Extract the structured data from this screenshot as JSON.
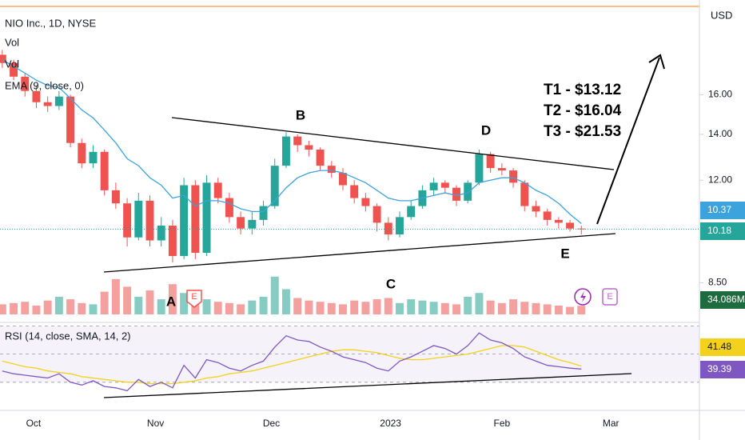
{
  "chart_data": {
    "type": "candlestick",
    "title": "NIO Inc., 1D, NYSE",
    "volume_label": "Vol",
    "volume_label_2": "Vol",
    "ema_label": "EMA (9, close, 0)",
    "rsi_label": "RSI (14, close, SMA, 14, 2)",
    "currency": "USD",
    "annotations": [
      "A",
      "B",
      "C",
      "D",
      "E"
    ],
    "targets": [
      "T1 - $13.12",
      "T2 - $16.04",
      "T3 - $21.53"
    ],
    "earnings_badge": "E",
    "log_scale": true,
    "up_color": "#26a69a",
    "down_color": "#ef5350",
    "volume_up_color": "#86ccc3",
    "volume_down_color": "#f3a09e",
    "ema_color": "#3ca3dc",
    "rsi_color": "#7e57c2",
    "rsi_sma_color": "#f2d21b",
    "xlim": [
      -0.2,
      61.4
    ],
    "xticks": [
      {
        "value": 2.75,
        "label": "Oct"
      },
      {
        "value": 13.5,
        "label": "Nov"
      },
      {
        "value": 23.7,
        "label": "Dec"
      },
      {
        "value": 34.2,
        "label": "2023"
      },
      {
        "value": 44,
        "label": "Feb"
      },
      {
        "value": 53.6,
        "label": "Mar"
      }
    ],
    "ylim": [
      7.6,
      22
    ],
    "yticks": [
      {
        "value": 8.5,
        "label": "8.50"
      },
      {
        "value": 12,
        "label": "12.00"
      },
      {
        "value": 14,
        "label": "14.00"
      },
      {
        "value": 16,
        "label": "16.00"
      }
    ],
    "open": [
      18.3,
      17.8,
      17.0,
      16.2,
      15.6,
      15.4,
      15.9,
      13.6,
      12.7,
      13.2,
      11.6,
      11.1,
      9.9,
      11.2,
      9.8,
      10.3,
      9.3,
      11.8,
      9.4,
      11.9,
      11.3,
      10.6,
      10.2,
      10.5,
      11.0,
      12.6,
      13.9,
      13.5,
      13.3,
      12.6,
      12.3,
      11.8,
      11.3,
      11.0,
      10.4,
      10.0,
      10.6,
      11.0,
      11.6,
      11.9,
      11.7,
      11.2,
      11.9,
      13.1,
      12.5,
      12.4,
      11.9,
      11.0,
      10.8,
      10.5,
      10.4,
      10.2
    ],
    "high": [
      18.6,
      18.0,
      17.2,
      16.5,
      15.9,
      16.2,
      16.0,
      13.8,
      13.5,
      13.3,
      11.9,
      11.3,
      11.5,
      11.4,
      10.6,
      10.5,
      12.1,
      12.0,
      12.2,
      12.1,
      11.5,
      10.8,
      10.8,
      11.2,
      12.9,
      14.1,
      14.0,
      13.7,
      13.4,
      12.8,
      12.5,
      12.0,
      11.5,
      11.1,
      10.6,
      10.8,
      11.2,
      11.8,
      12.1,
      12.0,
      11.8,
      12.0,
      13.3,
      13.2,
      12.7,
      12.5,
      12.0,
      11.2,
      10.9,
      10.6,
      10.5,
      10.3
    ],
    "low": [
      17.5,
      16.8,
      15.9,
      15.3,
      15.1,
      15.2,
      13.4,
      12.5,
      12.5,
      11.4,
      10.9,
      9.6,
      9.8,
      9.6,
      9.6,
      9.1,
      9.2,
      9.2,
      9.3,
      11.1,
      10.4,
      10.0,
      10.0,
      10.3,
      10.9,
      12.5,
      13.2,
      13.0,
      12.4,
      12.1,
      11.6,
      11.1,
      10.8,
      10.1,
      9.8,
      9.9,
      10.5,
      10.9,
      11.4,
      11.5,
      11.0,
      11.1,
      11.8,
      12.3,
      12.2,
      11.7,
      10.8,
      10.6,
      10.3,
      10.2,
      10.1,
      10.0
    ],
    "close": [
      17.8,
      17.0,
      16.2,
      15.6,
      15.4,
      15.9,
      13.6,
      12.7,
      13.2,
      11.6,
      11.1,
      9.9,
      11.2,
      9.8,
      10.3,
      9.3,
      11.8,
      9.4,
      11.9,
      11.3,
      10.6,
      10.2,
      10.5,
      11.0,
      12.6,
      13.9,
      13.5,
      13.3,
      12.6,
      12.3,
      11.8,
      11.3,
      11.0,
      10.4,
      10.0,
      10.6,
      11.0,
      11.6,
      11.9,
      11.7,
      11.2,
      11.9,
      13.1,
      12.5,
      12.4,
      11.9,
      11.0,
      10.8,
      10.5,
      10.4,
      10.2,
      10.18
    ],
    "ema": [
      18.0,
      17.6,
      17.2,
      16.8,
      16.5,
      16.4,
      15.8,
      15.2,
      14.8,
      14.2,
      13.6,
      12.9,
      12.6,
      12.1,
      11.8,
      11.3,
      11.4,
      11.0,
      11.2,
      11.2,
      11.1,
      10.9,
      10.8,
      10.8,
      11.2,
      11.7,
      12.1,
      12.3,
      12.4,
      12.4,
      12.3,
      12.1,
      11.9,
      11.6,
      11.3,
      11.2,
      11.2,
      11.3,
      11.4,
      11.5,
      11.4,
      11.5,
      11.9,
      12.0,
      12.1,
      12.1,
      11.9,
      11.6,
      11.4,
      11.1,
      10.7,
      10.37
    ],
    "vlim": [
      0,
      200
    ],
    "volume": [
      40,
      45,
      50,
      35,
      55,
      70,
      60,
      45,
      40,
      90,
      140,
      110,
      70,
      95,
      60,
      120,
      85,
      75,
      60,
      50,
      45,
      40,
      55,
      70,
      150,
      100,
      65,
      55,
      50,
      45,
      40,
      55,
      50,
      60,
      65,
      45,
      60,
      55,
      50,
      45,
      40,
      70,
      85,
      55,
      45,
      60,
      50,
      45,
      40,
      35,
      30,
      34.086
    ],
    "volume_value_labels": [
      null,
      null,
      null,
      null,
      null,
      null,
      null,
      null,
      null,
      null,
      null,
      null,
      null,
      null,
      null,
      null,
      null,
      null,
      null,
      null,
      null,
      null,
      null,
      null,
      null,
      null,
      null,
      null,
      null,
      null,
      null,
      null,
      null,
      null,
      null,
      null,
      null,
      null,
      null,
      null,
      null,
      null,
      null,
      null,
      null,
      null,
      null,
      null,
      null,
      null,
      null,
      "34.086M"
    ],
    "rsi_ylim": [
      10,
      72.5
    ],
    "rsi_levels": [
      70,
      50,
      30
    ],
    "rsi": [
      38,
      36,
      35,
      34,
      33,
      36,
      30,
      28,
      31,
      27,
      26,
      24,
      32,
      27,
      30,
      26,
      42,
      33,
      46,
      44,
      40,
      38,
      42,
      45,
      55,
      63,
      60,
      59,
      55,
      52,
      48,
      46,
      44,
      40,
      38,
      45,
      48,
      52,
      56,
      54,
      50,
      56,
      65,
      60,
      58,
      54,
      48,
      45,
      42,
      41,
      40,
      39.39
    ],
    "rsi_sma": [
      45,
      43,
      41,
      40,
      38,
      37,
      36,
      34,
      33,
      32,
      31,
      30,
      30,
      29,
      29,
      29,
      30,
      31,
      33,
      34,
      36,
      37,
      38,
      40,
      42,
      44,
      46,
      48,
      50,
      52,
      53,
      53,
      52,
      51,
      49,
      47,
      46,
      46,
      47,
      48,
      49,
      50,
      52,
      54,
      56,
      56,
      55,
      52,
      49,
      46,
      44,
      41.48
    ]
  }
}
